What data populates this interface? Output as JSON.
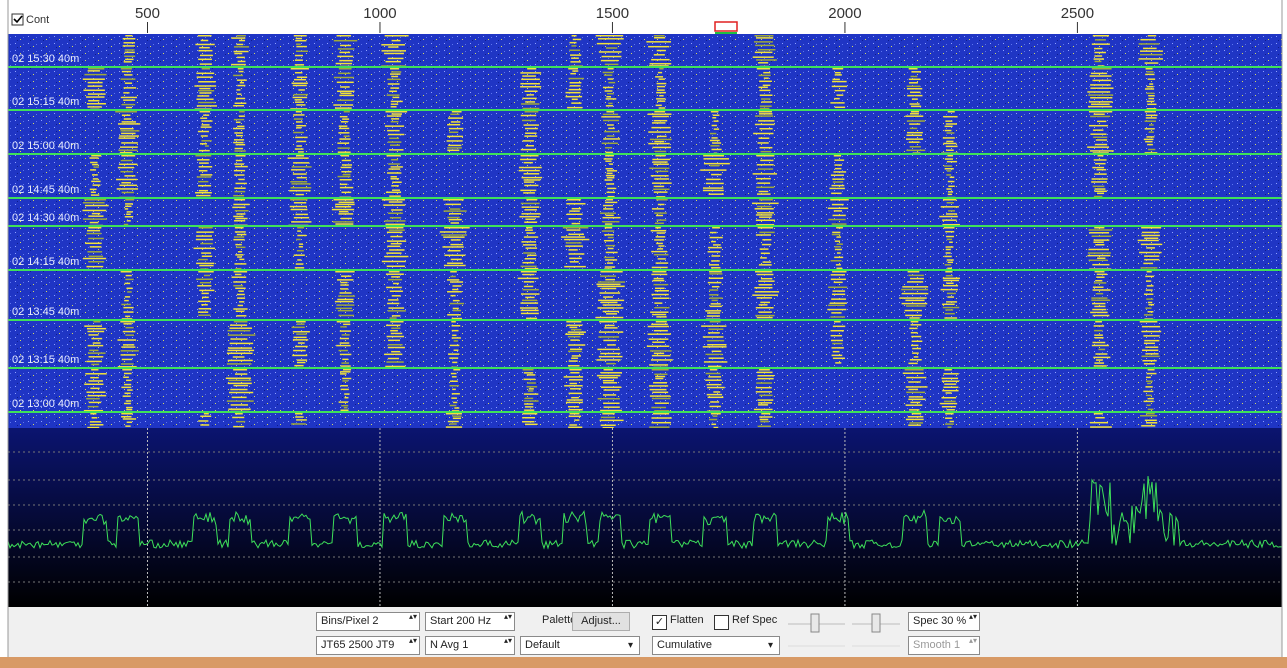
{
  "header": {
    "cont_label": "Cont"
  },
  "frequency_scale": {
    "range": [
      200,
      2940
    ],
    "ticks": [
      500,
      1000,
      1500,
      2000,
      2500
    ]
  },
  "waterfall": {
    "time_labels": [
      "02 15:30  40m",
      "02 15:15  40m",
      "02 15:00  40m",
      "02 14:45  40m",
      "02 14:30  40m",
      "02 14:15  40m",
      "02 13:45  40m",
      "02 13:15  40m",
      "02 13:00  40m"
    ]
  },
  "controls": {
    "bins_per_pixel": "Bins/Pixel 2",
    "start": "Start 200 Hz",
    "palette_label": "Palette",
    "adjust_button": "Adjust...",
    "flatten": "Flatten",
    "ref_spec": "Ref Spec",
    "spec": "Spec 30 %",
    "mode": "JT65 2500 JT9",
    "n_avg": "N Avg 1",
    "palette": "Default",
    "spectrum_type": "Cumulative",
    "smooth": "Smooth 1"
  }
}
